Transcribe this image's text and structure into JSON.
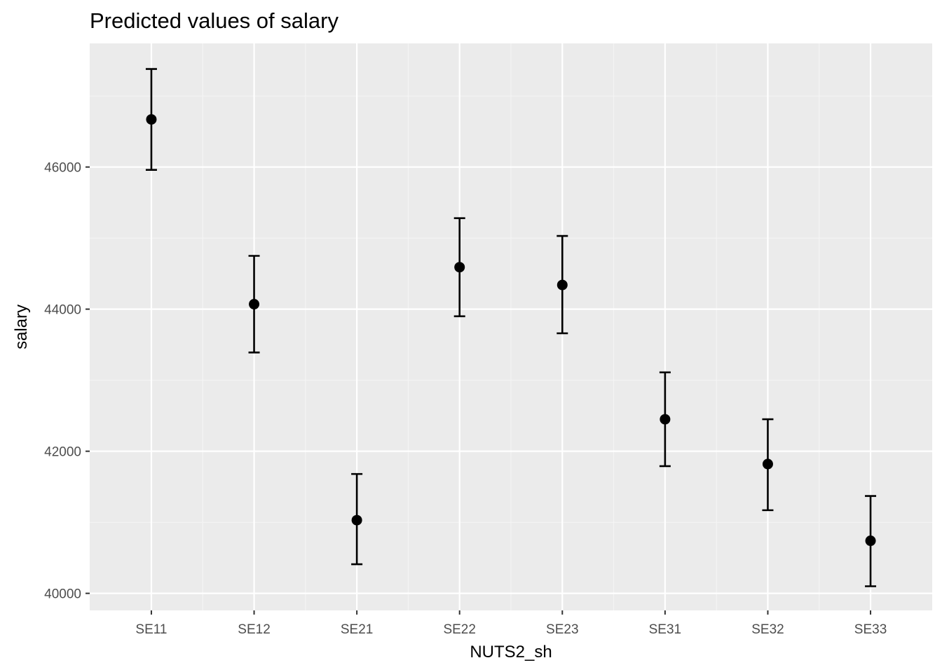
{
  "chart_data": {
    "type": "scatter",
    "title": "Predicted values of salary",
    "xlabel": "NUTS2_sh",
    "ylabel": "salary",
    "categories": [
      "SE11",
      "SE12",
      "SE21",
      "SE22",
      "SE23",
      "SE31",
      "SE32",
      "SE33"
    ],
    "series": [
      {
        "values": [
          46670,
          44070,
          41030,
          44590,
          44340,
          42450,
          41820,
          40740
        ],
        "lower": [
          45960,
          43390,
          40410,
          43900,
          43660,
          41790,
          41170,
          40100
        ],
        "upper": [
          47380,
          44750,
          41680,
          45280,
          45030,
          43110,
          42450,
          41370
        ]
      }
    ],
    "y_ticks": [
      40000,
      42000,
      44000,
      46000
    ],
    "y_tick_labels": [
      "40000",
      "42000",
      "44000",
      "46000"
    ],
    "ylim": [
      39760,
      47740
    ],
    "grid": true,
    "legend": "none",
    "colors": {
      "panel_background": "#ebebeb",
      "grid_major": "#ffffff",
      "grid_minor": "#f5f5f5",
      "marks": "#000000",
      "tick_label": "#4d4d4d",
      "tick_mark": "#333333"
    }
  }
}
